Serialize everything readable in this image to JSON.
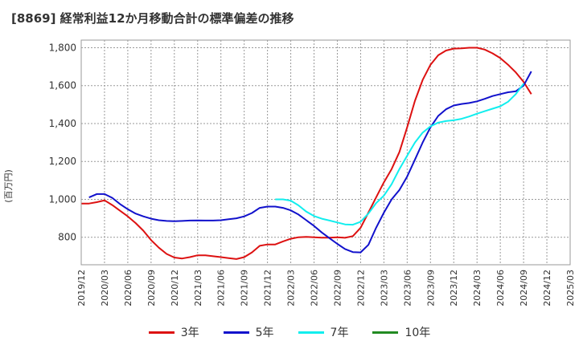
{
  "chart_data": {
    "type": "line",
    "title": "[8869]  経常利益12か月移動合計の標準偏差の推移",
    "ylabel": "(百万円)",
    "xlabel": "",
    "ylim": [
      655,
      1840
    ],
    "yticks": [
      800,
      1000,
      1200,
      1400,
      1600,
      1800
    ],
    "ytick_labels": [
      "800",
      "1,000",
      "1,200",
      "1,400",
      "1,600",
      "1,800"
    ],
    "xlim": [
      "2019-12",
      "2025-03"
    ],
    "xticks": [
      "2019/12",
      "2020/03",
      "2020/06",
      "2020/09",
      "2020/12",
      "2021/03",
      "2021/06",
      "2021/09",
      "2021/12",
      "2022/03",
      "2022/06",
      "2022/09",
      "2022/12",
      "2023/03",
      "2023/06",
      "2023/09",
      "2023/12",
      "2024/03",
      "2024/06",
      "2024/09",
      "2024/12",
      "2025/03"
    ],
    "grid": true,
    "legend_position": "bottom",
    "series": [
      {
        "name": "3年",
        "color": "#dd1111",
        "start": "2019-12",
        "values": [
          978,
          978,
          985,
          995,
          970,
          940,
          910,
          875,
          835,
          785,
          745,
          712,
          693,
          688,
          695,
          705,
          705,
          700,
          695,
          690,
          685,
          695,
          720,
          755,
          762,
          762,
          778,
          792,
          800,
          802,
          800,
          798,
          798,
          800,
          797,
          806,
          850,
          930,
          1010,
          1090,
          1160,
          1250,
          1380,
          1520,
          1630,
          1710,
          1760,
          1785,
          1795,
          1797,
          1800,
          1800,
          1790,
          1770,
          1745,
          1710,
          1670,
          1620,
          1555
        ]
      },
      {
        "name": "5年",
        "color": "#1111cc",
        "start": "2020-01",
        "values": [
          1010,
          1028,
          1028,
          1008,
          975,
          948,
          925,
          910,
          898,
          890,
          886,
          885,
          886,
          888,
          889,
          888,
          888,
          890,
          895,
          900,
          910,
          928,
          955,
          962,
          962,
          955,
          942,
          920,
          890,
          860,
          825,
          795,
          765,
          738,
          722,
          720,
          760,
          850,
          930,
          1000,
          1050,
          1120,
          1210,
          1300,
          1380,
          1440,
          1475,
          1495,
          1503,
          1508,
          1517,
          1530,
          1545,
          1555,
          1565,
          1570,
          1600,
          1675
        ]
      },
      {
        "name": "7年",
        "color": "#11eeee",
        "start": "2022-01",
        "values": [
          1000,
          1000,
          993,
          968,
          935,
          912,
          898,
          888,
          878,
          868,
          866,
          882,
          925,
          980,
          1020,
          1080,
          1160,
          1230,
          1300,
          1352,
          1385,
          1405,
          1413,
          1417,
          1425,
          1437,
          1452,
          1465,
          1478,
          1491,
          1515,
          1555,
          1610
        ]
      },
      {
        "name": "10年",
        "color": "#228b22",
        "start": "2019-12",
        "values": []
      }
    ]
  }
}
